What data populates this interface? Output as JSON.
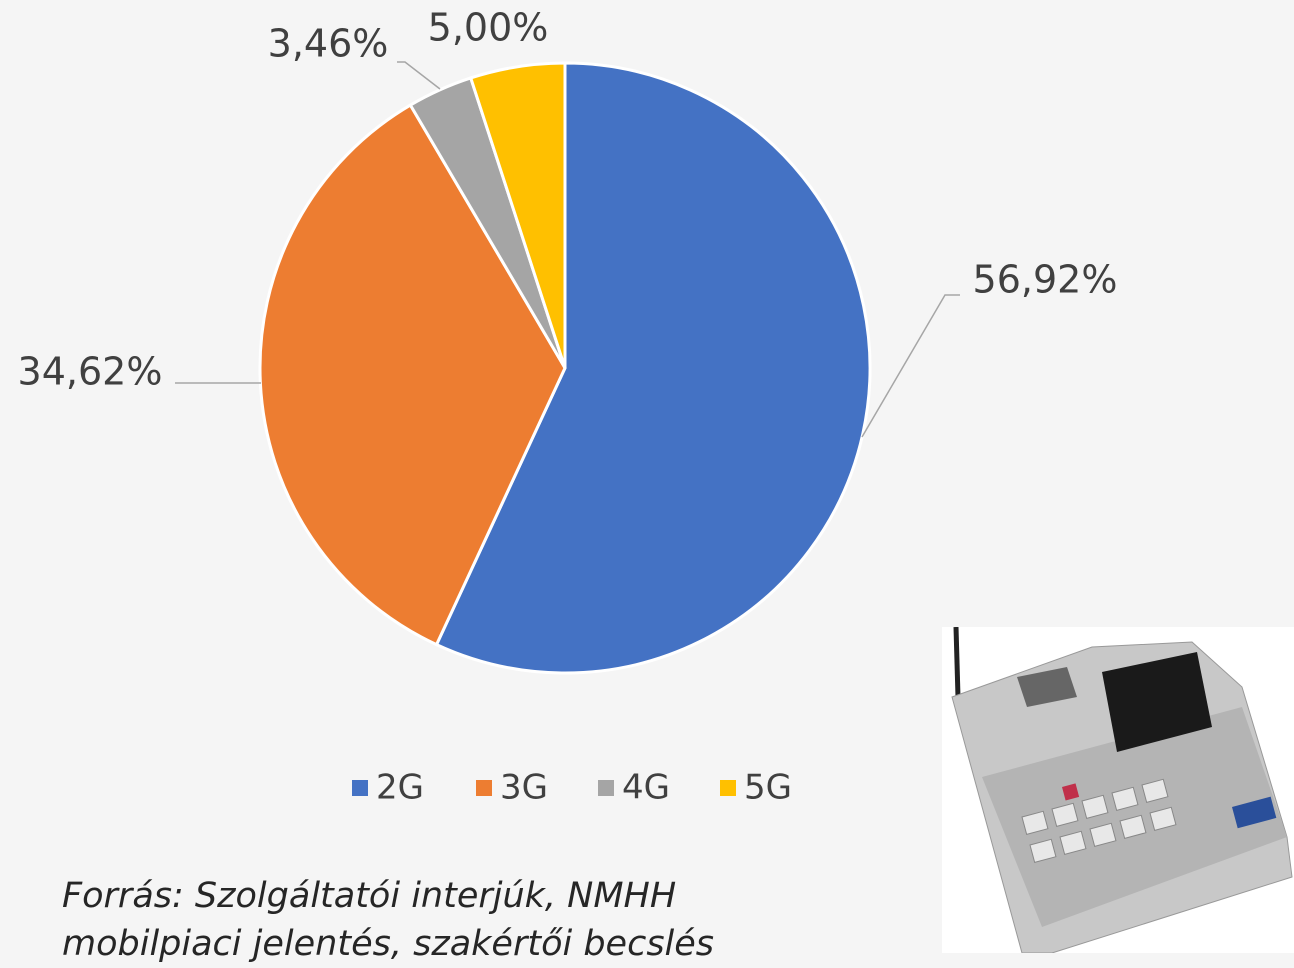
{
  "chart_data": {
    "type": "pie",
    "categories": [
      "2G",
      "3G",
      "4G",
      "5G"
    ],
    "values": [
      56.92,
      34.62,
      3.46,
      5.0
    ],
    "value_labels": [
      "56,92%",
      "34,62%",
      "3,46%",
      "5,00%"
    ],
    "colors": [
      "#4472c4",
      "#ed7d31",
      "#a5a5a5",
      "#ffc000"
    ],
    "legend": "bottom",
    "note": "Forrás: Szolgáltatói interjúk, NMHH mobilpiaci jelentés, szakértői becslés"
  }
}
